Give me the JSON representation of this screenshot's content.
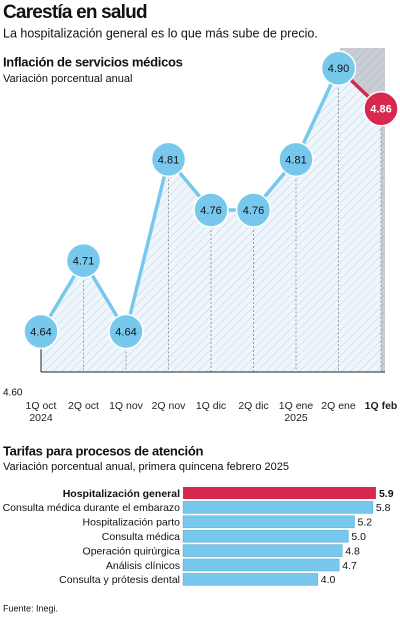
{
  "title": "Carestía en salud",
  "subtitle": "La hospitalización general es lo que más sube de precio.",
  "source": "Fuente: Inegi.",
  "chart_data": [
    {
      "type": "line",
      "title": "Inflación de servicios médicos",
      "subtitle": "Variación porcentual anual",
      "categories": [
        "1Q oct 2024",
        "2Q oct",
        "1Q nov",
        "2Q nov",
        "1Q dic",
        "2Q dic",
        "1Q ene 2025",
        "2Q ene",
        "1Q feb"
      ],
      "values": [
        4.64,
        4.71,
        4.64,
        4.81,
        4.76,
        4.76,
        4.81,
        4.9,
        4.86
      ],
      "value_labels": [
        "4.64",
        "4.71",
        "4.64",
        "4.81",
        "4.76",
        "4.76",
        "4.81",
        "4.90",
        "4.86"
      ],
      "color": "#77c8ec",
      "highlight_color": "#d9284f",
      "ylim": [
        4.6,
        4.92
      ],
      "yticks": [
        {
          "value": 4.6,
          "label": "4.60"
        }
      ]
    },
    {
      "type": "hbar",
      "title": "Tarifas para procesos de atención",
      "subtitle": "Variación porcentual anual, primera quincena febrero 2025",
      "categories": [
        "Hospitalización general",
        "Consulta médica durante el embarazo",
        "Hospitalización parto",
        "Consulta médica",
        "Operación quirúrgica",
        "Análisis clínicos",
        "Consulta y prótesis dental"
      ],
      "values": [
        5.9,
        5.8,
        5.2,
        5.0,
        4.8,
        4.7,
        4.0
      ],
      "value_labels": [
        "5.9",
        "5.8",
        "5.2",
        "5.0",
        "4.8",
        "4.7",
        "4.0"
      ],
      "color": "#77c8ec",
      "highlight_color": "#d9284f",
      "xlim": [
        -0.4,
        6
      ]
    }
  ]
}
